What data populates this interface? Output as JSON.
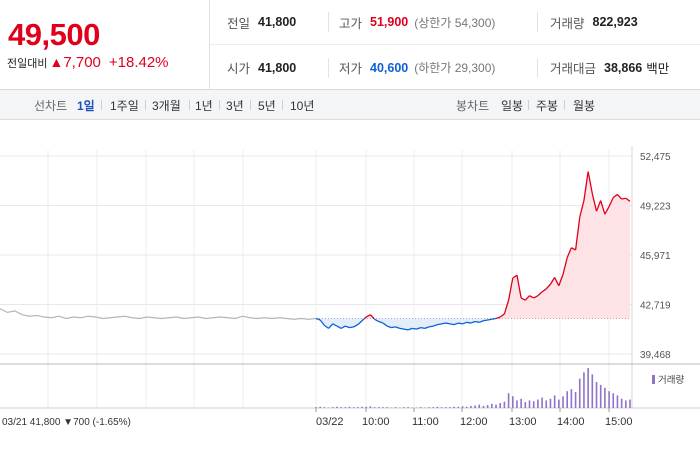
{
  "quote": {
    "price": "49,500",
    "change_label": "전일대비",
    "change_arrow": "▲",
    "change_value": "7,700",
    "change_percent": "+18.42%"
  },
  "stats": {
    "prev_close_label": "전일",
    "prev_close": "41,800",
    "high_label": "고가",
    "high": "51,900",
    "upper_limit": "(상한가 54,300)",
    "volume_label": "거래량",
    "volume": "822,923",
    "open_label": "시가",
    "open": "41,800",
    "low_label": "저가",
    "low": "40,600",
    "lower_limit": "(하한가 29,300)",
    "amount_label": "거래대금",
    "amount": "38,866",
    "amount_unit": "백만"
  },
  "tabs": {
    "line_label": "선차트",
    "line": [
      "1일",
      "1주일",
      "3개월",
      "1년",
      "3년",
      "5년",
      "10년"
    ],
    "active": "1일",
    "candle_label": "봉차트",
    "candle": [
      "일봉",
      "주봉",
      "월봉"
    ]
  },
  "colors": {
    "up": "#e0001c",
    "down": "#0d5fd6",
    "volume": "#8f72c9"
  },
  "chart_data": {
    "type": "line",
    "y_ticks": [
      "52,475",
      "49,223",
      "45,971",
      "42,719",
      "39,468"
    ],
    "ylim": [
      39468,
      52475
    ],
    "baseline": 41800,
    "x_ticks": [
      "03/21",
      "03/22",
      "10:00",
      "11:00",
      "12:00",
      "13:00",
      "14:00",
      "15:00"
    ],
    "prev_day_info": "03/21  41,800 ▼700 (-1.65%)",
    "volume_legend": "거래량",
    "prev_day_series": [
      42450,
      42200,
      42300,
      42050,
      41950,
      42000,
      41900,
      41850,
      41950,
      41800,
      41900,
      41850,
      41950,
      41900,
      41800,
      41850,
      41900,
      41950,
      41850,
      41800,
      41900,
      41850,
      41800,
      41850,
      41900,
      41800,
      41850,
      41900,
      41800,
      41850,
      41900,
      41850,
      41800,
      41950,
      41850,
      41800,
      41850,
      41800,
      41850,
      41800,
      41750,
      41800,
      41750,
      41800
    ],
    "today_series": [
      41800,
      41700,
      41350,
      41150,
      41450,
      41300,
      41150,
      41300,
      41200,
      41250,
      41400,
      41650,
      41900,
      42050,
      41750,
      41600,
      41500,
      41300,
      41200,
      41250,
      41150,
      41100,
      41050,
      41150,
      41100,
      41200,
      41150,
      41250,
      41300,
      41400,
      41450,
      41500,
      41450,
      41400,
      41500,
      41450,
      41550,
      41500,
      41600,
      41550,
      41650,
      41700,
      41750,
      41800,
      41900,
      42100,
      43000,
      44450,
      44650,
      43150,
      43000,
      43300,
      43150,
      43300,
      43550,
      43750,
      44050,
      44500,
      43950,
      44700,
      45800,
      46450,
      46300,
      48450,
      49550,
      51450,
      50000,
      48850,
      49550,
      48650,
      49150,
      49750,
      49950,
      49650,
      49700,
      49500
    ],
    "volume_bars": [
      0.02,
      0.03,
      0.02,
      0.01,
      0.02,
      0.03,
      0.02,
      0.02,
      0.03,
      0.02,
      0.02,
      0.03,
      0.03,
      0.04,
      0.02,
      0.02,
      0.02,
      0.02,
      0.01,
      0.02,
      0.01,
      0.02,
      0.02,
      0.01,
      0.01,
      0.02,
      0.01,
      0.02,
      0.02,
      0.03,
      0.02,
      0.02,
      0.02,
      0.03,
      0.03,
      0.04,
      0.03,
      0.05,
      0.06,
      0.08,
      0.05,
      0.07,
      0.1,
      0.08,
      0.12,
      0.15,
      0.35,
      0.28,
      0.18,
      0.22,
      0.14,
      0.18,
      0.16,
      0.2,
      0.25,
      0.18,
      0.22,
      0.3,
      0.2,
      0.28,
      0.4,
      0.45,
      0.38,
      0.7,
      0.85,
      0.95,
      0.8,
      0.62,
      0.55,
      0.48,
      0.4,
      0.35,
      0.3,
      0.22,
      0.18,
      0.2
    ]
  }
}
